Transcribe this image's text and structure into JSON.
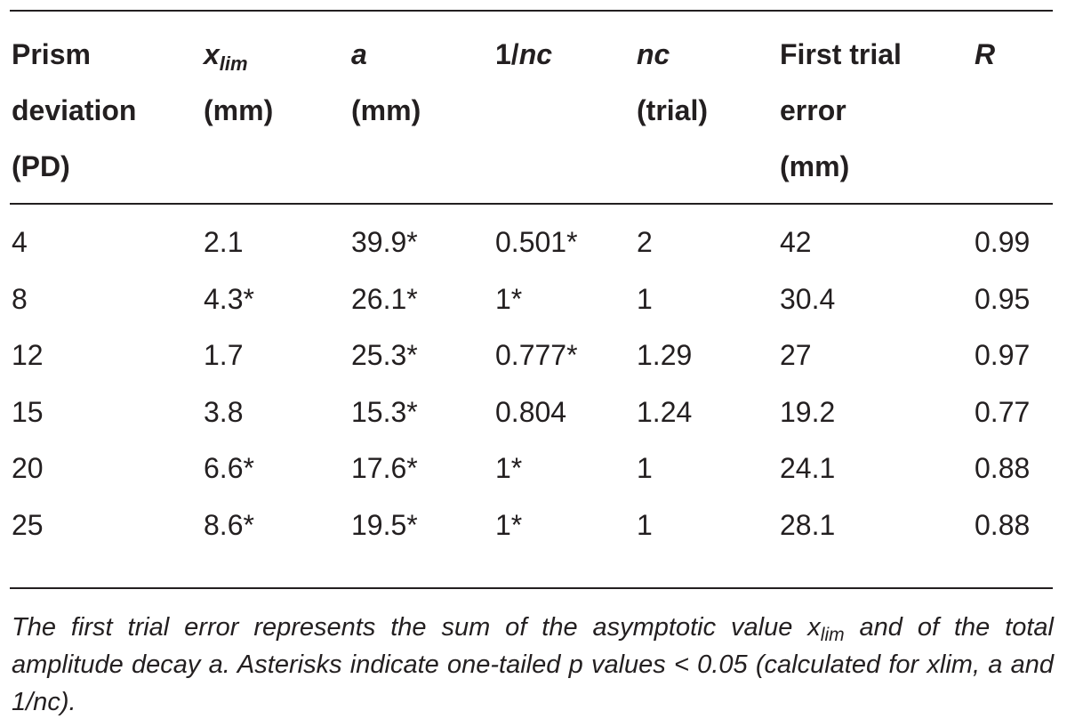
{
  "table": {
    "headers": [
      {
        "lines": [
          "Prism",
          "deviation",
          "(PD)"
        ]
      },
      {
        "main": "x",
        "sub": "lim",
        "line2": "(mm)"
      },
      {
        "main": "a",
        "line2": "(mm)"
      },
      {
        "pre": "1/",
        "main": "nc"
      },
      {
        "main": "nc",
        "line2": "(trial)"
      },
      {
        "lines": [
          "First trial",
          "error",
          "(mm)"
        ]
      },
      {
        "main": "R"
      }
    ],
    "rows": [
      [
        "4",
        "2.1",
        "39.9*",
        "0.501*",
        "2",
        "42",
        "0.99"
      ],
      [
        "8",
        "4.3*",
        "26.1*",
        "1*",
        "1",
        "30.4",
        "0.95"
      ],
      [
        "12",
        "1.7",
        "25.3*",
        "0.777*",
        "1.29",
        "27",
        "0.97"
      ],
      [
        "15",
        "3.8",
        "15.3*",
        "0.804",
        "1.24",
        "19.2",
        "0.77"
      ],
      [
        "20",
        "6.6*",
        "17.6*",
        "1*",
        "1",
        "24.1",
        "0.88"
      ],
      [
        "25",
        "8.6*",
        "19.5*",
        "1*",
        "1",
        "28.1",
        "0.88"
      ]
    ]
  },
  "footnote": {
    "part1": "The first trial error represents the sum of the asymptotic value x",
    "sub": "lim",
    "part2": " and of the total amplitude decay a. Asterisks indicate one-tailed p values < 0.05 (calculated for xlim, a and 1/nc)."
  }
}
